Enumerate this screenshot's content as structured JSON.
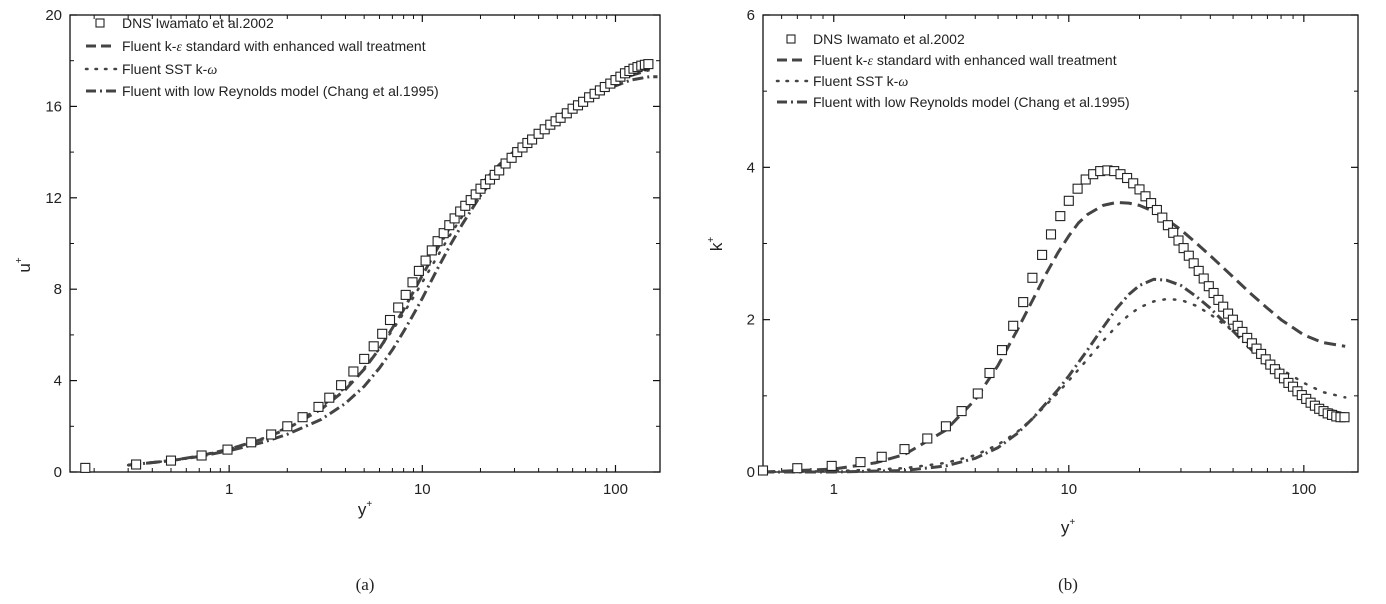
{
  "legend": {
    "dns": "DNS Iwamato et al.2002",
    "ke_prefix": "Fluent k-",
    "ke_sym": "ε",
    "ke_suffix": " standard with enhanced wall treatment",
    "sst_prefix": "Fluent SST k-",
    "sst_sym": "ω",
    "lowre": "Fluent with low Reynolds model (Chang et al.1995)"
  },
  "colors": {
    "line": "#444444",
    "marker": "#222222",
    "axis": "#111111",
    "background": "#ffffff"
  },
  "chart_data": [
    {
      "type": "line",
      "caption": "(a)",
      "xlabel_base": "y",
      "xlabel_sup": "+",
      "ylabel_base": "u",
      "ylabel_sup": "+",
      "xscale": "log",
      "xlim": [
        0.15,
        170
      ],
      "ylim": [
        0,
        20
      ],
      "xticks": [
        1,
        10,
        100
      ],
      "xtick_labels": [
        "1",
        "10",
        "100"
      ],
      "yticks": [
        0,
        4,
        8,
        12,
        16,
        20
      ],
      "ytick_labels": [
        "0",
        "4",
        "8",
        "12",
        "16",
        "20"
      ],
      "grid": false,
      "legend_position": "top-left",
      "series": [
        {
          "name": "DNS Iwamato et al.2002",
          "style": "square-markers",
          "x": [
            0.18,
            0.33,
            0.5,
            0.72,
            0.98,
            1.3,
            1.65,
            2.0,
            2.4,
            2.9,
            3.3,
            3.8,
            4.4,
            5.0,
            5.6,
            6.2,
            6.8,
            7.5,
            8.2,
            8.9,
            9.6,
            10.4,
            11.2,
            12.0,
            12.9,
            13.8,
            14.7,
            15.7,
            16.7,
            17.8,
            18.9,
            20,
            21.2,
            22.4,
            23.7,
            25,
            27,
            29,
            31,
            33,
            35,
            37,
            40,
            43,
            46,
            49,
            52,
            56,
            60,
            64,
            68,
            73,
            78,
            83,
            88,
            94,
            100,
            106,
            112,
            118,
            124,
            130,
            136,
            142,
            148
          ],
          "y": [
            0.18,
            0.33,
            0.5,
            0.72,
            0.98,
            1.3,
            1.64,
            2.0,
            2.4,
            2.85,
            3.25,
            3.8,
            4.4,
            4.95,
            5.5,
            6.05,
            6.65,
            7.2,
            7.75,
            8.3,
            8.8,
            9.25,
            9.7,
            10.1,
            10.45,
            10.8,
            11.1,
            11.4,
            11.65,
            11.9,
            12.15,
            12.4,
            12.6,
            12.8,
            13.0,
            13.2,
            13.5,
            13.75,
            14.0,
            14.2,
            14.4,
            14.55,
            14.8,
            15.0,
            15.2,
            15.35,
            15.5,
            15.7,
            15.9,
            16.05,
            16.2,
            16.4,
            16.55,
            16.7,
            16.85,
            17.0,
            17.15,
            17.3,
            17.45,
            17.55,
            17.65,
            17.72,
            17.78,
            17.82,
            17.85
          ]
        },
        {
          "name": "Fluent k-ε standard with enhanced wall treatment",
          "style": "dashed",
          "x": [
            0.3,
            0.5,
            0.7,
            1.0,
            1.5,
            2.0,
            3.0,
            4.0,
            5.0,
            6.0,
            7.0,
            8.0,
            9.0,
            10,
            12,
            14,
            16,
            20,
            25,
            30,
            40,
            50,
            60,
            80,
            100,
            120,
            150
          ],
          "y": [
            0.3,
            0.5,
            0.7,
            1.0,
            1.45,
            1.9,
            2.75,
            3.6,
            4.5,
            5.4,
            6.3,
            7.1,
            7.9,
            8.6,
            9.8,
            10.75,
            11.5,
            12.55,
            13.45,
            14.05,
            14.9,
            15.5,
            15.95,
            16.6,
            17.05,
            17.35,
            17.6
          ]
        },
        {
          "name": "Fluent SST k-ω",
          "style": "dotted",
          "x": [
            0.3,
            0.5,
            0.7,
            1.0,
            1.5,
            2.0,
            3.0,
            4.0,
            5.0,
            6.0,
            7.0,
            8.0,
            9.0,
            10,
            12,
            14,
            16,
            20,
            25,
            30,
            40,
            50,
            60,
            80,
            100,
            120,
            150
          ],
          "y": [
            0.3,
            0.5,
            0.7,
            1.0,
            1.48,
            1.95,
            2.85,
            3.7,
            4.55,
            5.4,
            6.2,
            6.95,
            7.65,
            8.3,
            9.45,
            10.4,
            11.15,
            12.3,
            13.3,
            13.95,
            14.9,
            15.55,
            16.05,
            16.75,
            17.25,
            17.5,
            17.6
          ]
        },
        {
          "name": "Fluent with low Reynolds model (Chang et al.1995)",
          "style": "dash-dot",
          "x": [
            0.3,
            0.5,
            0.7,
            1.0,
            1.5,
            2.0,
            3.0,
            4.0,
            5.0,
            6.0,
            7.0,
            8.0,
            9.0,
            10,
            12,
            14,
            16,
            20,
            25,
            30,
            40,
            50,
            60,
            80,
            100,
            120,
            150,
            165
          ],
          "y": [
            0.3,
            0.5,
            0.68,
            0.93,
            1.3,
            1.65,
            2.3,
            3.0,
            3.75,
            4.55,
            5.35,
            6.15,
            6.9,
            7.6,
            8.9,
            9.95,
            10.8,
            12.1,
            13.15,
            13.85,
            14.8,
            15.45,
            15.9,
            16.5,
            16.9,
            17.15,
            17.3,
            17.3
          ]
        }
      ]
    },
    {
      "type": "line",
      "caption": "(b)",
      "xlabel_base": "y",
      "xlabel_sup": "+",
      "ylabel_base": "k",
      "ylabel_sup": "+",
      "xscale": "log",
      "xlim": [
        0.5,
        170
      ],
      "ylim": [
        0,
        6
      ],
      "xticks": [
        1,
        10,
        100
      ],
      "xtick_labels": [
        "1",
        "10",
        "100"
      ],
      "yticks": [
        0,
        2,
        4,
        6
      ],
      "ytick_labels": [
        "0",
        "2",
        "4",
        "6"
      ],
      "grid": false,
      "legend_position": "top-left",
      "series": [
        {
          "name": "DNS Iwamato et al.2002",
          "style": "square-markers",
          "x": [
            0.5,
            0.7,
            0.98,
            1.3,
            1.6,
            2.0,
            2.5,
            3.0,
            3.5,
            4.1,
            4.6,
            5.2,
            5.8,
            6.4,
            7.0,
            7.7,
            8.4,
            9.2,
            10.0,
            10.9,
            11.8,
            12.7,
            13.6,
            14.6,
            15.6,
            16.6,
            17.7,
            18.8,
            20,
            21.2,
            22.4,
            23.7,
            25,
            26.4,
            27.8,
            29.3,
            30.8,
            32.4,
            34,
            35.7,
            37.5,
            39.4,
            41.3,
            43.3,
            45.4,
            47.6,
            49.9,
            52.3,
            54.8,
            57.4,
            60.1,
            62.9,
            65.8,
            68.8,
            72,
            75.3,
            78.7,
            82.3,
            86,
            89.9,
            93.9,
            98,
            102.3,
            106.8,
            111.4,
            116.2,
            121.2,
            126.4,
            131.8,
            137.4,
            143.2,
            149
          ],
          "y": [
            0.02,
            0.05,
            0.08,
            0.13,
            0.2,
            0.3,
            0.44,
            0.6,
            0.8,
            1.03,
            1.3,
            1.6,
            1.92,
            2.23,
            2.55,
            2.85,
            3.12,
            3.36,
            3.56,
            3.72,
            3.84,
            3.91,
            3.95,
            3.96,
            3.95,
            3.91,
            3.86,
            3.79,
            3.71,
            3.62,
            3.53,
            3.44,
            3.34,
            3.24,
            3.14,
            3.04,
            2.94,
            2.84,
            2.74,
            2.64,
            2.54,
            2.44,
            2.35,
            2.26,
            2.17,
            2.08,
            2.0,
            1.92,
            1.84,
            1.76,
            1.69,
            1.62,
            1.55,
            1.48,
            1.41,
            1.35,
            1.29,
            1.23,
            1.17,
            1.12,
            1.06,
            1.01,
            0.96,
            0.91,
            0.87,
            0.83,
            0.8,
            0.77,
            0.75,
            0.73,
            0.72,
            0.72
          ]
        },
        {
          "name": "Fluent k-ε standard with enhanced wall treatment",
          "style": "dashed",
          "x": [
            0.5,
            1.0,
            1.5,
            2.0,
            3.0,
            4.0,
            5.0,
            6.0,
            7.0,
            8.0,
            9.0,
            10,
            11,
            12,
            14,
            16,
            18,
            20,
            23,
            26,
            30,
            35,
            40,
            50,
            60,
            70,
            80,
            100,
            120,
            150
          ],
          "y": [
            0.0,
            0.04,
            0.12,
            0.23,
            0.55,
            0.95,
            1.4,
            1.85,
            2.25,
            2.6,
            2.88,
            3.1,
            3.27,
            3.38,
            3.5,
            3.54,
            3.53,
            3.5,
            3.42,
            3.32,
            3.18,
            3.0,
            2.84,
            2.56,
            2.33,
            2.15,
            2.0,
            1.8,
            1.7,
            1.65
          ]
        },
        {
          "name": "Fluent SST k-ω",
          "style": "dotted",
          "x": [
            0.5,
            1.0,
            2.0,
            3.0,
            4.0,
            5.0,
            6.0,
            7.0,
            8.0,
            9.0,
            10,
            12,
            14,
            16,
            18,
            20,
            23,
            26,
            30,
            35,
            40,
            50,
            60,
            70,
            80,
            100,
            120,
            150
          ],
          "y": [
            0.0,
            0.01,
            0.05,
            0.12,
            0.22,
            0.36,
            0.52,
            0.7,
            0.88,
            1.04,
            1.2,
            1.48,
            1.72,
            1.92,
            2.06,
            2.16,
            2.24,
            2.27,
            2.26,
            2.18,
            2.07,
            1.85,
            1.65,
            1.48,
            1.35,
            1.17,
            1.05,
            0.98
          ]
        },
        {
          "name": "Fluent with low Reynolds model (Chang et al.1995)",
          "style": "dash-dot",
          "x": [
            0.5,
            1.0,
            2.0,
            3.0,
            4.0,
            5.0,
            6.0,
            7.0,
            8.0,
            9.0,
            10,
            12,
            14,
            16,
            18,
            20,
            23,
            26,
            30,
            35,
            40,
            50,
            60,
            70,
            80,
            100,
            120,
            150
          ],
          "y": [
            0.0,
            0.0,
            0.02,
            0.08,
            0.18,
            0.32,
            0.5,
            0.7,
            0.9,
            1.08,
            1.26,
            1.6,
            1.9,
            2.15,
            2.33,
            2.45,
            2.53,
            2.52,
            2.45,
            2.3,
            2.15,
            1.85,
            1.6,
            1.4,
            1.24,
            1.0,
            0.85,
            0.75
          ]
        }
      ]
    }
  ]
}
